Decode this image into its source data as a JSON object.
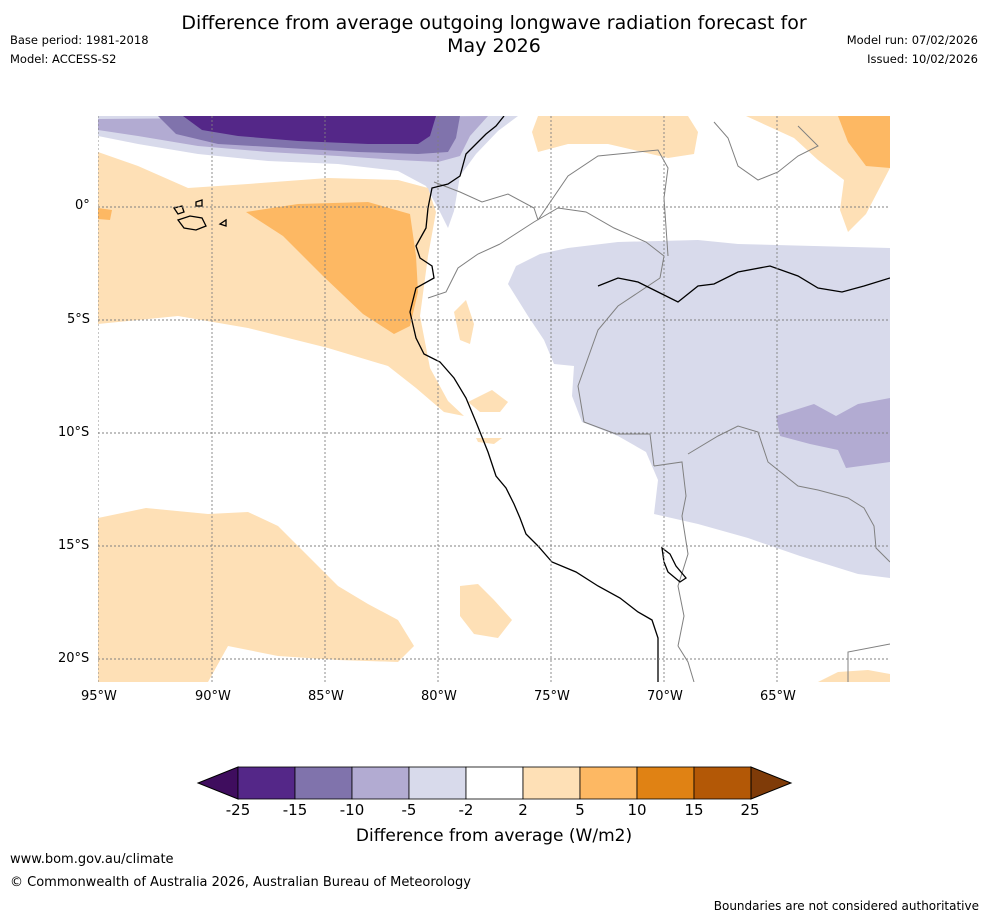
{
  "title_line1": "Difference from average outgoing longwave radiation forecast for",
  "title_line2": "May 2026",
  "base_period": "Base period: 1981-2018",
  "model": "Model: ACCESS-S2",
  "model_run": "Model run: 07/02/2026",
  "issued": "Issued: 10/02/2026",
  "lat_labels": [
    "0°",
    "5°S",
    "10°S",
    "15°S",
    "20°S"
  ],
  "lon_labels": [
    "95°W",
    "90°W",
    "85°W",
    "80°W",
    "75°W",
    "70°W",
    "65°W"
  ],
  "colorbar": {
    "title": "Difference from average (W/m2)",
    "ticks": [
      "-25",
      "-15",
      "-10",
      "-5",
      "-2",
      "2",
      "5",
      "10",
      "15",
      "25"
    ],
    "colors": [
      "#3f0d5e",
      "#542788",
      "#8073ac",
      "#b2abd2",
      "#d8daeb",
      "#ffffff",
      "#fee0b6",
      "#fdb863",
      "#e08214",
      "#b35806",
      "#7f3b08"
    ]
  },
  "website": "www.bom.gov.au/climate",
  "copyright": "© Commonwealth of Australia 2026, Australian Bureau of Meteorology",
  "disclaimer": "Boundaries are not considered authoritative"
}
